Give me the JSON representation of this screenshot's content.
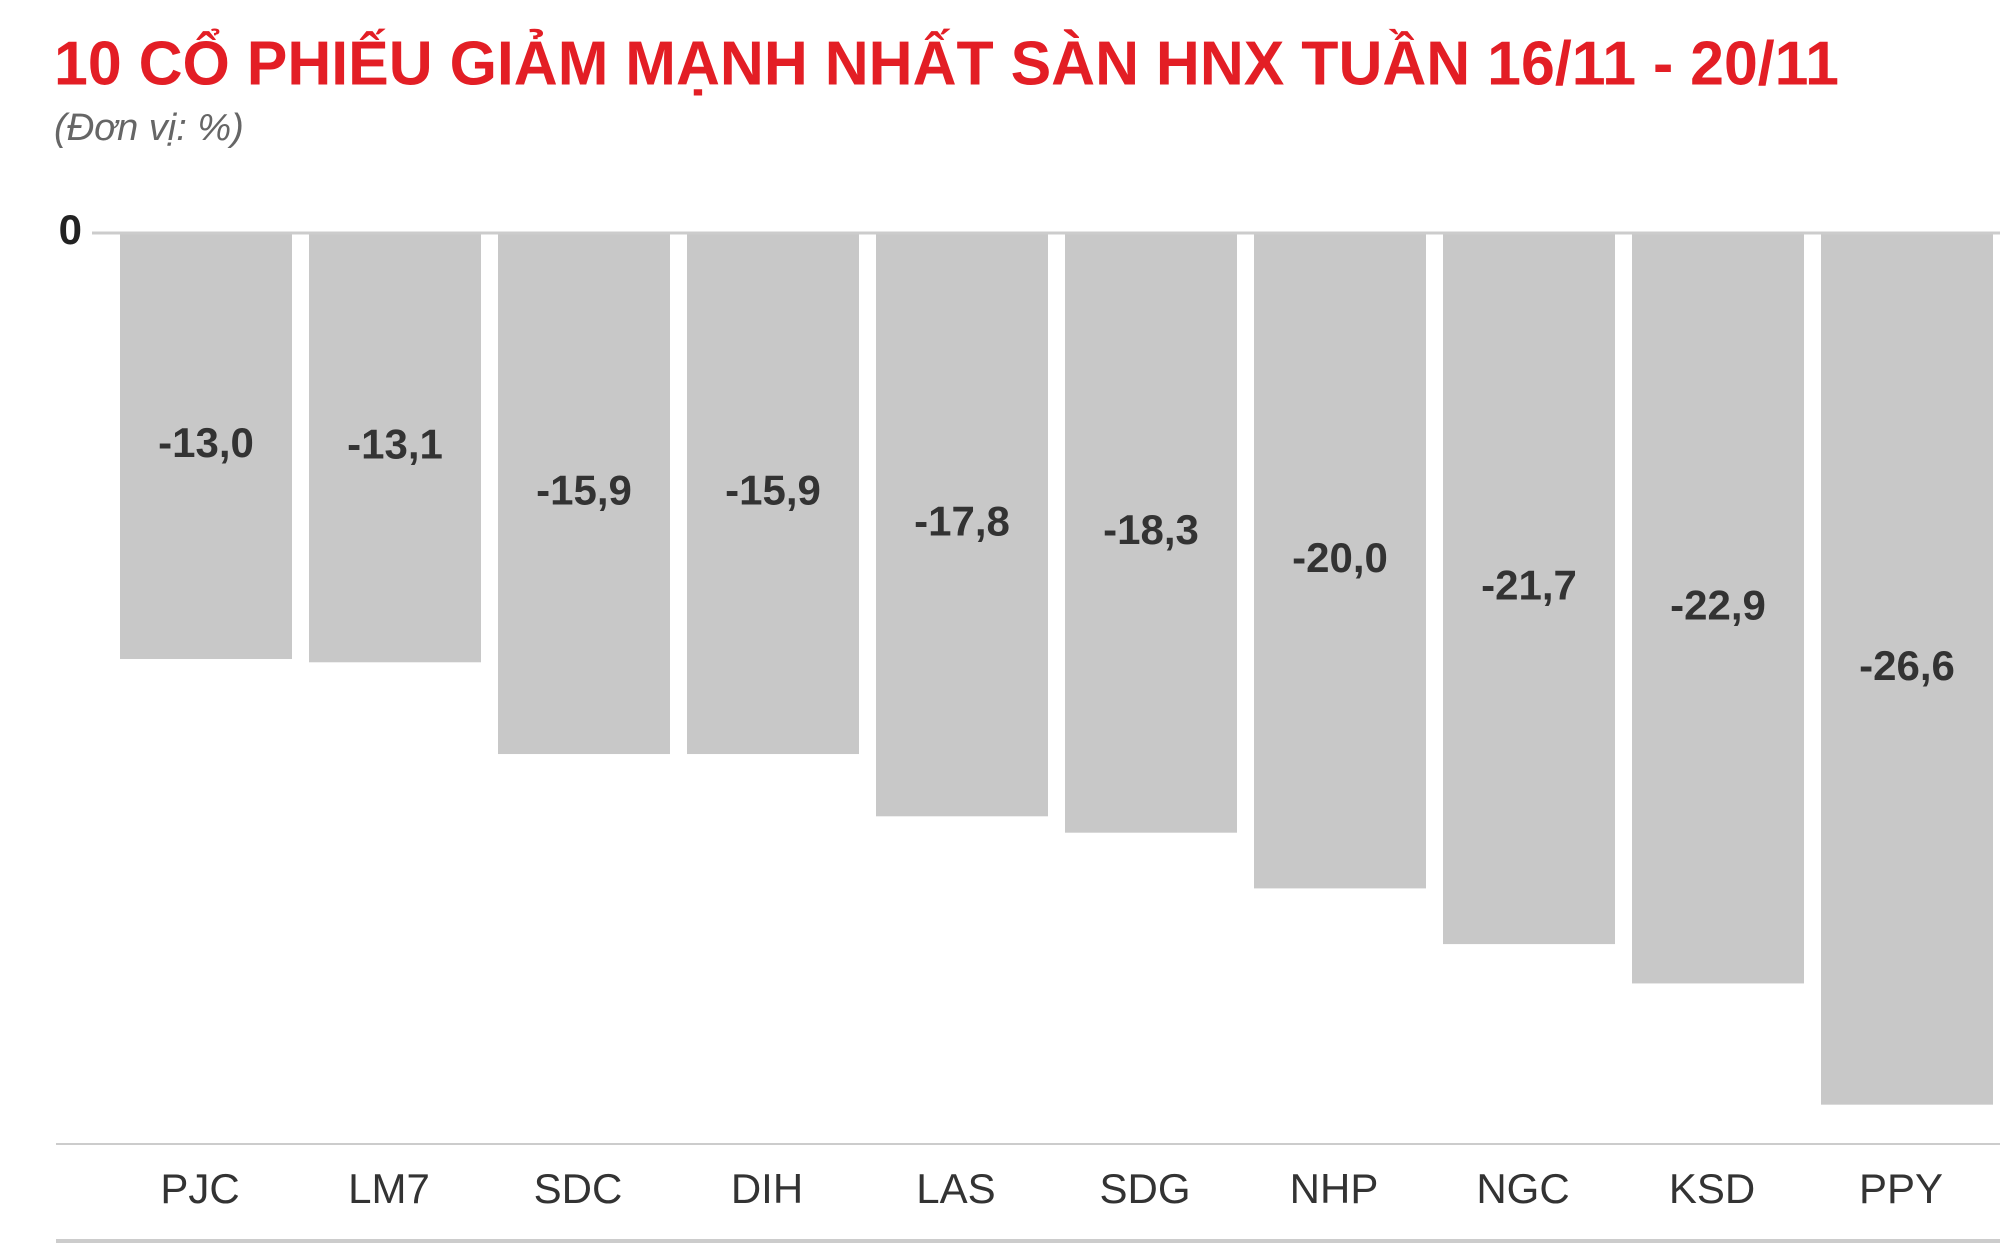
{
  "chart_data": {
    "type": "bar",
    "title": "10 CỔ PHIẾU GIẢM MẠNH NHẤT SÀN HNX TUẦN 16/11 - 20/11",
    "subtitle": "(Đơn vị: %)",
    "categories": [
      "PJC",
      "LM7",
      "SDC",
      "DIH",
      "LAS",
      "SDG",
      "NHP",
      "NGC",
      "KSD",
      "PPY"
    ],
    "values": [
      -13.0,
      -13.1,
      -15.9,
      -15.9,
      -17.8,
      -18.3,
      -20.0,
      -21.7,
      -22.9,
      -26.6
    ],
    "value_labels": [
      "-13,0",
      "-13,1",
      "-15,9",
      "-15,9",
      "-17,8",
      "-18,3",
      "-20,0",
      "-21,7",
      "-22,9",
      "-26,6"
    ],
    "color": "#c8c8c8",
    "title_color": "#e31e25",
    "ylim": [
      -27.8,
      0
    ],
    "yticks": [
      0
    ]
  }
}
